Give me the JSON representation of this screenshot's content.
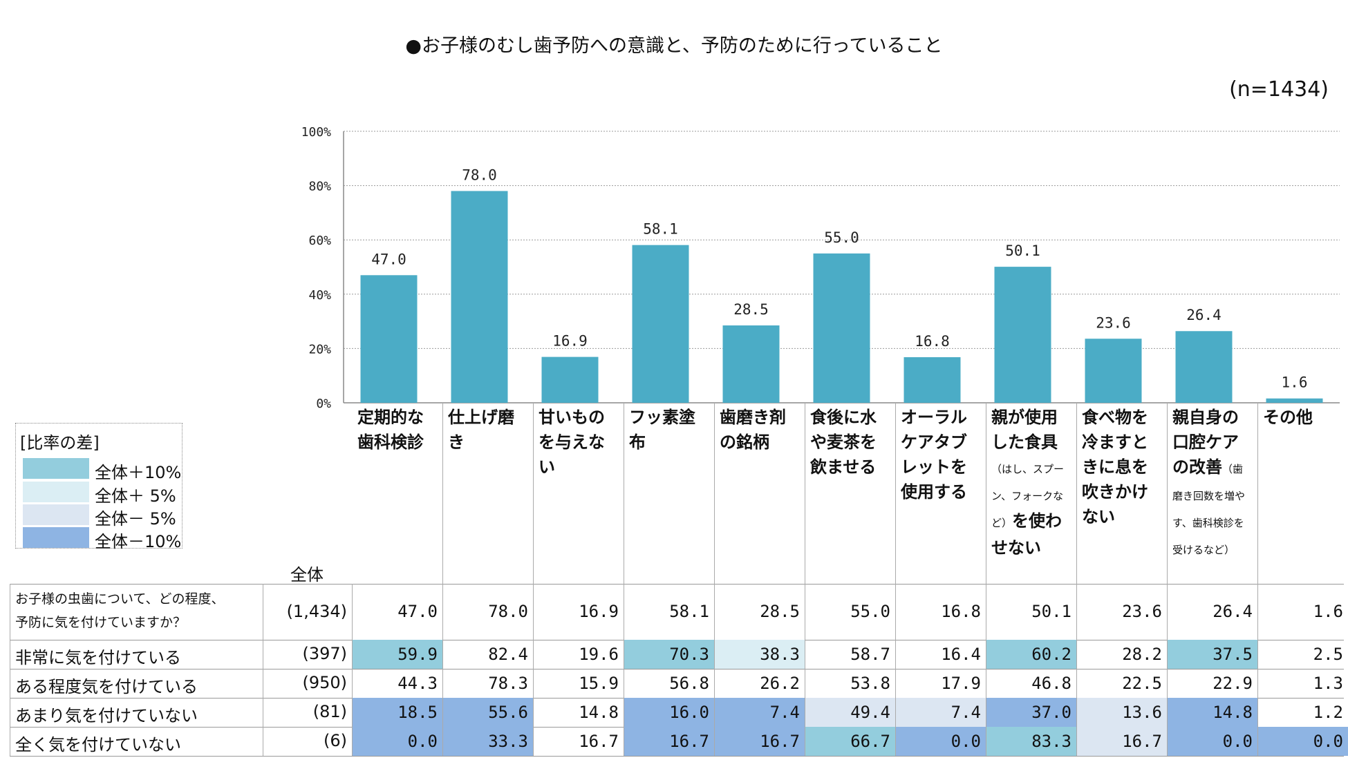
{
  "title": "●お子様のむし歯予防への意識と、予防のために行っていること",
  "sample": "(n=1434)",
  "colors": {
    "bar": "#4bacc6",
    "plus10": "#93cddd",
    "plus5": "#dbeef4",
    "minus5": "#dce6f2",
    "minus10": "#8eb4e3"
  },
  "legend": {
    "title": "[比率の差]",
    "items": [
      {
        "label": "全体＋10%",
        "color": "#93cddd"
      },
      {
        "label": "全体＋ 5%",
        "color": "#dbeef4"
      },
      {
        "label": "全体－ 5%",
        "color": "#dce6f2"
      },
      {
        "label": "全体－10%",
        "color": "#8eb4e3"
      }
    ]
  },
  "table": {
    "total_header": "全体",
    "question": "お子様の虫歯について、どの程度、予防に気を付けていますか？",
    "question_lines": [
      "お子様の虫歯について、どの程度、",
      "予防に気を付けていますか？"
    ],
    "rows": [
      {
        "label": "",
        "n": "(1,434)",
        "values": [
          "47.0",
          "78.0",
          "16.9",
          "58.1",
          "28.5",
          "55.0",
          "16.8",
          "50.1",
          "23.6",
          "26.4",
          "1.6"
        ],
        "shade": [
          "",
          "",
          "",
          "",
          "",
          "",
          "",
          "",
          "",
          "",
          ""
        ]
      },
      {
        "label": "非常に気を付けている",
        "n": "(397)",
        "values": [
          "59.9",
          "82.4",
          "19.6",
          "70.3",
          "38.3",
          "58.7",
          "16.4",
          "60.2",
          "28.2",
          "37.5",
          "2.5"
        ],
        "shade": [
          "plus10",
          "",
          "",
          "plus10",
          "plus5",
          "",
          "",
          "plus10",
          "",
          "plus10",
          ""
        ]
      },
      {
        "label": "ある程度気を付けている",
        "n": "(950)",
        "values": [
          "44.3",
          "78.3",
          "15.9",
          "56.8",
          "26.2",
          "53.8",
          "17.9",
          "46.8",
          "22.5",
          "22.9",
          "1.3"
        ],
        "shade": [
          "",
          "",
          "",
          "",
          "",
          "",
          "",
          "",
          "",
          "",
          ""
        ]
      },
      {
        "label": "あまり気を付けていない",
        "n": "(81)",
        "values": [
          "18.5",
          "55.6",
          "14.8",
          "16.0",
          "7.4",
          "49.4",
          "7.4",
          "37.0",
          "13.6",
          "14.8",
          "1.2"
        ],
        "shade": [
          "minus10",
          "minus10",
          "",
          "minus10",
          "minus10",
          "minus5",
          "minus5",
          "minus10",
          "minus5",
          "minus10",
          ""
        ]
      },
      {
        "label": "全く気を付けていない",
        "n": "(6)",
        "values": [
          "0.0",
          "33.3",
          "16.7",
          "16.7",
          "16.7",
          "66.7",
          "0.0",
          "83.3",
          "16.7",
          "0.0",
          "0.0"
        ],
        "shade": [
          "minus10",
          "minus10",
          "",
          "minus10",
          "minus10",
          "plus10",
          "minus10",
          "plus10",
          "minus5",
          "minus10",
          "minus10"
        ]
      }
    ]
  },
  "chart_data": {
    "type": "bar",
    "title": "●お子様のむし歯予防への意識と、予防のために行っていること",
    "categories": [
      "定期的な歯科検診",
      "仕上げ磨き",
      "甘いものを与えない",
      "フッ素塗布",
      "歯磨き剤の銘柄",
      "食後に水や麦茶を飲ませる",
      "オーラルケアタブレットを使用する",
      "親が使用した食具（はし、スプーン、フォークなど）を使わせない",
      "食べ物を冷ますときに息を吹きかけない",
      "親自身の口腔ケアの改善（歯磨き回数を増やす、歯科検診を受けるなど）",
      "その他"
    ],
    "category_main": [
      "定期的な歯科検診",
      "仕上げ磨き",
      "甘いものを与えない",
      "フッ素塗布",
      "歯磨き剤の銘柄",
      "食後に水や麦茶を飲ませる",
      "オーラルケアタブレットを使用する",
      "親が使用した食具",
      "食べ物を冷ますときに息を吹きかけない",
      "親自身の口腔ケアの改善",
      "その他"
    ],
    "category_note": [
      "",
      "",
      "",
      "",
      "",
      "",
      "",
      "（はし、スプーン、フォークなど）",
      "",
      "（歯磨き回数を増やす、歯科検診を受けるなど）",
      ""
    ],
    "category_tail": [
      "",
      "",
      "",
      "",
      "",
      "",
      "",
      "を使わせない",
      "",
      "",
      ""
    ],
    "values": [
      47.0,
      78.0,
      16.9,
      58.1,
      28.5,
      55.0,
      16.8,
      50.1,
      23.6,
      26.4,
      1.6
    ],
    "value_labels": [
      "47.0",
      "78.0",
      "16.9",
      "58.1",
      "28.5",
      "55.0",
      "16.8",
      "50.1",
      "23.6",
      "26.4",
      "1.6"
    ],
    "ylim": [
      0,
      100
    ],
    "yticks": [
      "0%",
      "20%",
      "40%",
      "60%",
      "80%",
      "100%"
    ],
    "ytick_values": [
      0,
      20,
      40,
      60,
      80,
      100
    ],
    "grid": true,
    "xlabel": "",
    "ylabel": ""
  }
}
